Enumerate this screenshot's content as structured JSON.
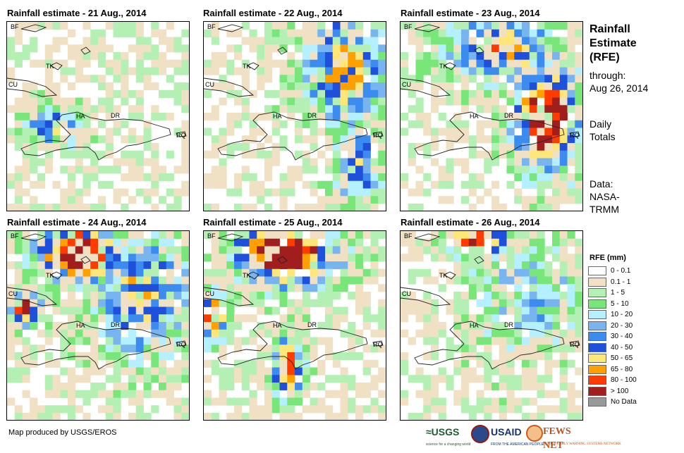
{
  "panels": [
    {
      "title": "Rainfall estimate - 21 Aug., 2014",
      "seed": 21,
      "storm": null
    },
    {
      "title": "Rainfall estimate - 22 Aug., 2014",
      "seed": 22,
      "storm": "northeast"
    },
    {
      "title": "Rainfall estimate - 23 Aug., 2014",
      "seed": 23,
      "storm": "east"
    },
    {
      "title": "Rainfall estimate - 24 Aug., 2014",
      "seed": 24,
      "storm": "north"
    },
    {
      "title": "Rainfall estimate - 25 Aug., 2014",
      "seed": 25,
      "storm": "north-heavy"
    },
    {
      "title": "Rainfall estimate - 26 Aug., 2014",
      "seed": 26,
      "storm": "north-light"
    }
  ],
  "map_labels": {
    "bf": "BF",
    "cu": "CU",
    "tk": "TK",
    "ha": "HA",
    "dr": "DR",
    "rq": "RQ"
  },
  "sidebar": {
    "title_line1": "Rainfall",
    "title_line2": "Estimate",
    "title_line3": "(RFE)",
    "through_label": "through:",
    "through_date": "Aug 26, 2014",
    "daily_line1": "Daily",
    "daily_line2": "Totals",
    "data_line1": "Data:",
    "data_line2": "NASA-",
    "data_line3": "TRMM"
  },
  "legend": {
    "title": "RFE (mm)",
    "items": [
      {
        "label": "0 - 0.1",
        "color": "#ffffff"
      },
      {
        "label": "0.1 - 1",
        "color": "#f0e0c4"
      },
      {
        "label": "1 - 5",
        "color": "#b4f0b4"
      },
      {
        "label": "5 - 10",
        "color": "#78e678"
      },
      {
        "label": "10 - 20",
        "color": "#b4f0ff"
      },
      {
        "label": "20 - 30",
        "color": "#78b4f0"
      },
      {
        "label": "30 - 40",
        "color": "#3c8cf0"
      },
      {
        "label": "40 - 50",
        "color": "#1e50dc"
      },
      {
        "label": "50 - 65",
        "color": "#ffe678"
      },
      {
        "label": "65 - 80",
        "color": "#ffa000"
      },
      {
        "label": "80 - 100",
        "color": "#ff3c00"
      },
      {
        "label": "> 100",
        "color": "#a01e1e"
      },
      {
        "label": "No Data",
        "color": "#999999"
      }
    ]
  },
  "footer": {
    "credit": "Map produced by USGS/EROS"
  },
  "logos": {
    "usgs": "≈USGS",
    "usgs_tag": "science for a changing world",
    "usaid": "USAID",
    "usaid_tag": "FROM THE AMERICAN PEOPLE",
    "fews": "FEWS NET",
    "fews_tag": "FAMINE EARLY WARNING SYSTEMS NETWORK"
  }
}
